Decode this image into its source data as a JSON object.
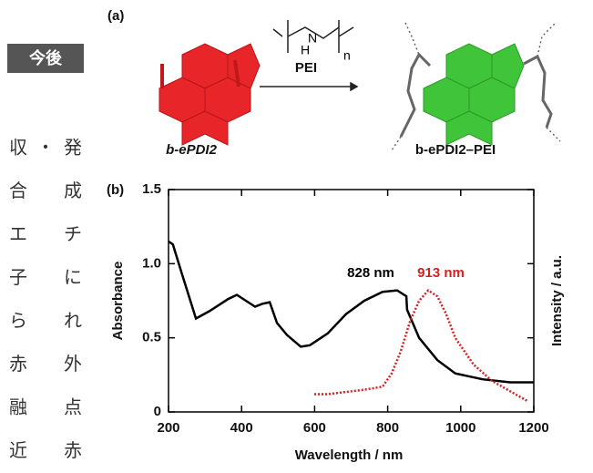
{
  "sidebar": {
    "label": "今後",
    "rows": [
      [
        "収",
        "・",
        "発"
      ],
      [
        "合",
        "成"
      ],
      [
        "エ",
        "チ"
      ],
      [
        "子",
        "に"
      ],
      [
        "ら",
        "れ"
      ],
      [
        "赤",
        "外"
      ],
      [
        "融",
        "点"
      ],
      [
        "近",
        "赤"
      ]
    ]
  },
  "scheme": {
    "panel_label": "(a)",
    "reagent": "PEI",
    "repeat": "n",
    "nitrogen": "N",
    "hydrogen": "H",
    "reactant": "b-ePDI2",
    "product": "b-ePDI2–PEI"
  },
  "chart_data": {
    "type": "line",
    "panel_label": "(b)",
    "x_label": "Wavelength / nm",
    "y_label": "Absorbance",
    "y2_label": "Intensity / a.u.",
    "xlim": [
      200,
      1200
    ],
    "xticks": [
      200,
      400,
      600,
      800,
      1000,
      1200
    ],
    "ylim": [
      0,
      1.5
    ],
    "yticks": [
      0,
      0.5,
      {
        "value": 1,
        "label": "1.0"
      },
      1.5
    ],
    "series": [
      {
        "name": "b-ePDI2",
        "color": "#000000",
        "style": "solid",
        "x": [
          200,
          212,
          237,
          275,
          312,
          362,
          387,
          412,
          437,
          457,
          477,
          497,
          524,
          562,
          587,
          636,
          686,
          736,
          786,
          826,
          851,
          853,
          886,
          936,
          985,
          1060,
          1135,
          1200
        ],
        "values": [
          1.15,
          1.13,
          0.93,
          0.63,
          0.68,
          0.76,
          0.79,
          0.75,
          0.71,
          0.73,
          0.74,
          0.6,
          0.52,
          0.44,
          0.45,
          0.53,
          0.66,
          0.75,
          0.81,
          0.82,
          0.78,
          0.69,
          0.5,
          0.35,
          0.26,
          0.22,
          0.2,
          0.2
        ]
      },
      {
        "name": "b-ePDI2–PEI",
        "color": "#d42020",
        "style": "dotted",
        "x": [
          599,
          636,
          736,
          786,
          811,
          836,
          861,
          886,
          911,
          936,
          960,
          985,
          1035,
          1085,
          1135,
          1185
        ],
        "values": [
          0.12,
          0.12,
          0.15,
          0.17,
          0.26,
          0.41,
          0.61,
          0.75,
          0.82,
          0.78,
          0.66,
          0.5,
          0.32,
          0.21,
          0.14,
          0.07
        ]
      }
    ],
    "annotations": [
      {
        "text": "828 nm",
        "color": "#000000"
      },
      {
        "text": "913 nm",
        "color": "#d42020"
      }
    ]
  }
}
